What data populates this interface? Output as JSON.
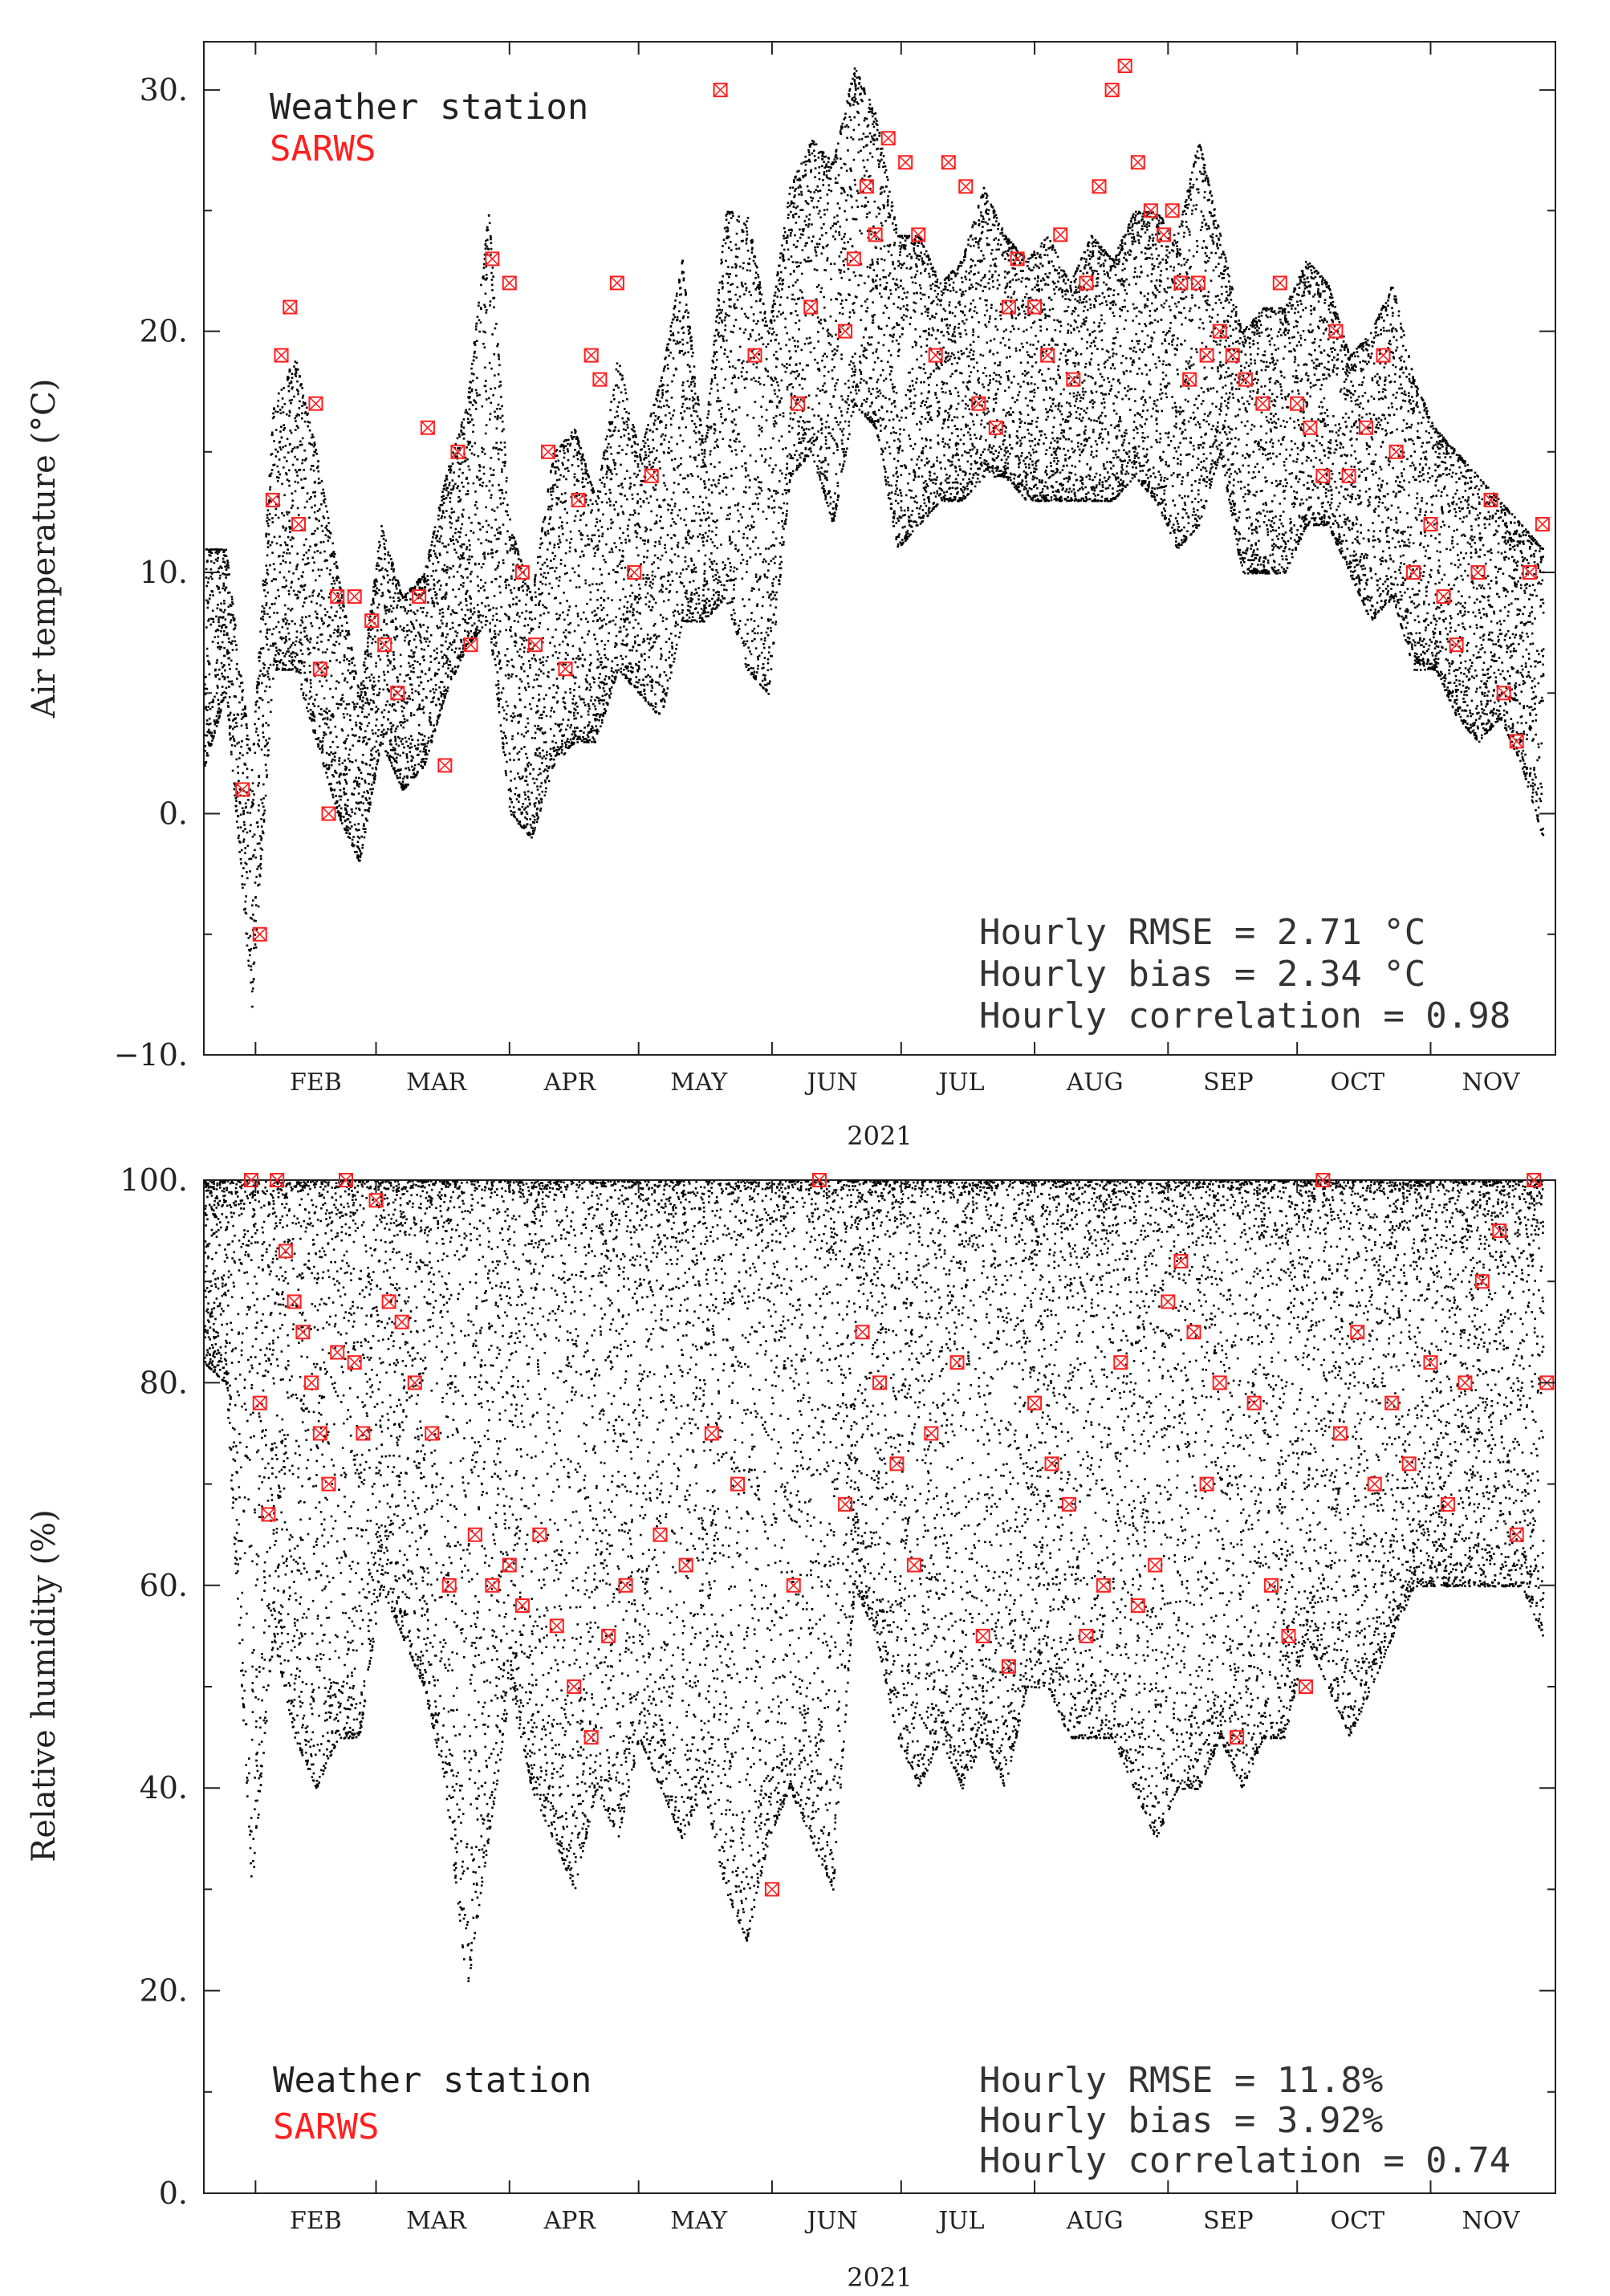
{
  "colors": {
    "station": "#000000",
    "sarws": "#ff2020",
    "axis": "#222222"
  },
  "chart_data": [
    {
      "type": "scatter",
      "ylabel": "Air temperature (°C)",
      "xlabel": "2021",
      "ylim": [
        -10,
        32
      ],
      "yticks": [
        -10,
        0,
        10,
        20,
        30
      ],
      "ytick_labels": [
        "−10.",
        "0.",
        "10.",
        "20.",
        "30."
      ],
      "xlim": [
        "2021-01-20",
        "2021-11-30"
      ],
      "month_labels": [
        "FEB",
        "MAR",
        "APR",
        "MAY",
        "JUN",
        "JUL",
        "AUG",
        "SEP",
        "OCT",
        "NOV"
      ],
      "legend": {
        "placement": "top-left",
        "entries": [
          "Weather station",
          "SARWS"
        ]
      },
      "stats": [
        "Hourly RMSE = 2.71 °C",
        "Hourly bias = 2.34 °C",
        "Hourly correlation = 0.98"
      ],
      "series": [
        {
          "name": "Weather station",
          "marker": "dot",
          "x": [
            "2021-01-20",
            "2021-01-25",
            "2021-01-31",
            "2021-02-05",
            "2021-02-10",
            "2021-02-15",
            "2021-02-20",
            "2021-02-25",
            "2021-03-02",
            "2021-03-07",
            "2021-03-12",
            "2021-03-17",
            "2021-03-22",
            "2021-03-27",
            "2021-04-01",
            "2021-04-06",
            "2021-04-11",
            "2021-04-16",
            "2021-04-21",
            "2021-04-26",
            "2021-05-01",
            "2021-05-06",
            "2021-05-11",
            "2021-05-16",
            "2021-05-21",
            "2021-05-26",
            "2021-05-31",
            "2021-06-05",
            "2021-06-10",
            "2021-06-15",
            "2021-06-20",
            "2021-06-25",
            "2021-06-30",
            "2021-07-05",
            "2021-07-10",
            "2021-07-15",
            "2021-07-20",
            "2021-07-25",
            "2021-07-30",
            "2021-08-04",
            "2021-08-09",
            "2021-08-14",
            "2021-08-19",
            "2021-08-24",
            "2021-08-29",
            "2021-09-03",
            "2021-09-08",
            "2021-09-13",
            "2021-09-18",
            "2021-09-23",
            "2021-09-28",
            "2021-10-03",
            "2021-10-08",
            "2021-10-13",
            "2021-10-18",
            "2021-10-23",
            "2021-10-28",
            "2021-11-02",
            "2021-11-07",
            "2021-11-12",
            "2021-11-17",
            "2021-11-22",
            "2021-11-27"
          ],
          "y": [
            8,
            9,
            -6,
            10,
            14,
            8,
            4,
            0,
            7,
            5,
            6,
            9,
            14,
            20,
            5,
            2,
            8,
            10,
            7,
            12,
            10,
            9,
            11,
            12,
            16,
            12,
            10,
            20,
            22,
            18,
            24,
            25,
            17,
            15,
            16,
            17,
            18,
            20,
            17,
            17,
            16,
            17,
            18,
            17,
            16,
            17,
            18,
            22,
            15,
            16,
            16,
            19,
            16,
            14,
            15,
            14,
            12,
            12,
            10,
            10,
            10,
            9,
            5
          ],
          "y_low": [
            2,
            5,
            -8,
            6,
            6,
            3,
            0,
            -2,
            3,
            1,
            2,
            5,
            7,
            8,
            0,
            -1,
            2,
            3,
            3,
            6,
            5,
            4,
            8,
            8,
            9,
            6,
            5,
            14,
            15,
            12,
            17,
            16,
            11,
            12,
            13,
            13,
            14,
            14,
            13,
            13,
            13,
            13,
            13,
            14,
            13,
            11,
            12,
            15,
            10,
            10,
            10,
            12,
            12,
            10,
            8,
            9,
            6,
            6,
            4,
            3,
            4,
            2,
            -1
          ],
          "y_high": [
            11,
            11,
            2,
            17,
            19,
            15,
            10,
            5,
            12,
            9,
            10,
            14,
            17,
            25,
            12,
            9,
            15,
            16,
            13,
            19,
            15,
            18,
            23,
            15,
            25,
            25,
            20,
            26,
            28,
            27,
            31,
            29,
            24,
            24,
            22,
            23,
            26,
            24,
            23,
            24,
            22,
            24,
            23,
            25,
            25,
            24,
            28,
            24,
            20,
            21,
            21,
            23,
            22,
            19,
            20,
            22,
            18,
            16,
            15,
            14,
            13,
            12,
            11
          ]
        },
        {
          "name": "SARWS",
          "marker": "boxed-x",
          "x": [
            "2021-01-29",
            "2021-02-02",
            "2021-02-05",
            "2021-02-07",
            "2021-02-09",
            "2021-02-11",
            "2021-02-15",
            "2021-02-16",
            "2021-02-18",
            "2021-02-20",
            "2021-02-24",
            "2021-02-28",
            "2021-03-03",
            "2021-03-06",
            "2021-03-11",
            "2021-03-13",
            "2021-03-17",
            "2021-03-20",
            "2021-03-23",
            "2021-03-28",
            "2021-04-01",
            "2021-04-04",
            "2021-04-07",
            "2021-04-10",
            "2021-04-14",
            "2021-04-17",
            "2021-04-20",
            "2021-04-22",
            "2021-04-26",
            "2021-04-30",
            "2021-05-04",
            "2021-05-20",
            "2021-05-28",
            "2021-06-07",
            "2021-06-10",
            "2021-06-18",
            "2021-06-20",
            "2021-06-23",
            "2021-06-25",
            "2021-06-28",
            "2021-07-02",
            "2021-07-05",
            "2021-07-09",
            "2021-07-12",
            "2021-07-16",
            "2021-07-19",
            "2021-07-23",
            "2021-07-26",
            "2021-07-28",
            "2021-08-01",
            "2021-08-04",
            "2021-08-07",
            "2021-08-10",
            "2021-08-13",
            "2021-08-16",
            "2021-08-19",
            "2021-08-22",
            "2021-08-25",
            "2021-08-28",
            "2021-08-31",
            "2021-09-02",
            "2021-09-04",
            "2021-09-06",
            "2021-09-08",
            "2021-09-10",
            "2021-09-13",
            "2021-09-16",
            "2021-09-19",
            "2021-09-23",
            "2021-09-27",
            "2021-10-01",
            "2021-10-04",
            "2021-10-07",
            "2021-10-10",
            "2021-10-13",
            "2021-10-17",
            "2021-10-21",
            "2021-10-24",
            "2021-10-28",
            "2021-11-01",
            "2021-11-04",
            "2021-11-07",
            "2021-11-12",
            "2021-11-15",
            "2021-11-18",
            "2021-11-21",
            "2021-11-24",
            "2021-11-27"
          ],
          "y": [
            1,
            -5,
            13,
            19,
            21,
            12,
            17,
            6,
            0,
            9,
            9,
            8,
            7,
            5,
            9,
            16,
            2,
            15,
            7,
            23,
            22,
            10,
            7,
            15,
            6,
            13,
            19,
            18,
            22,
            10,
            14,
            30,
            19,
            17,
            21,
            20,
            23,
            26,
            24,
            28,
            27,
            24,
            19,
            27,
            26,
            17,
            16,
            21,
            23,
            21,
            19,
            24,
            18,
            22,
            26,
            30,
            31,
            27,
            25,
            24,
            25,
            22,
            18,
            22,
            19,
            20,
            19,
            18,
            17,
            22,
            17,
            16,
            14,
            20,
            14,
            16,
            19,
            15,
            10,
            12,
            9,
            7,
            10,
            13,
            5,
            3,
            10,
            12
          ]
        }
      ]
    },
    {
      "type": "scatter",
      "ylabel": "Relative humidity (%)",
      "xlabel": "2021",
      "ylim": [
        0,
        100
      ],
      "yticks": [
        0,
        20,
        40,
        60,
        80,
        100
      ],
      "ytick_labels": [
        "0.",
        "20.",
        "40.",
        "60.",
        "80.",
        "100."
      ],
      "xlim": [
        "2021-01-20",
        "2021-11-30"
      ],
      "month_labels": [
        "FEB",
        "MAR",
        "APR",
        "MAY",
        "JUN",
        "JUL",
        "AUG",
        "SEP",
        "OCT",
        "NOV"
      ],
      "legend": {
        "placement": "bottom-left",
        "entries": [
          "Weather station",
          "SARWS"
        ]
      },
      "stats": [
        "Hourly RMSE = 11.8%",
        "Hourly bias = 3.92%",
        "Hourly correlation = 0.74"
      ],
      "series": [
        {
          "name": "Weather station",
          "marker": "dot",
          "x": [
            "2021-01-20",
            "2021-01-25",
            "2021-01-31",
            "2021-02-05",
            "2021-02-10",
            "2021-02-15",
            "2021-02-20",
            "2021-02-25",
            "2021-03-02",
            "2021-03-07",
            "2021-03-12",
            "2021-03-17",
            "2021-03-22",
            "2021-03-27",
            "2021-04-01",
            "2021-04-06",
            "2021-04-11",
            "2021-04-16",
            "2021-04-21",
            "2021-04-26",
            "2021-05-01",
            "2021-05-06",
            "2021-05-11",
            "2021-05-16",
            "2021-05-21",
            "2021-05-26",
            "2021-05-31",
            "2021-06-05",
            "2021-06-10",
            "2021-06-15",
            "2021-06-20",
            "2021-06-25",
            "2021-06-30",
            "2021-07-05",
            "2021-07-10",
            "2021-07-15",
            "2021-07-20",
            "2021-07-25",
            "2021-07-30",
            "2021-08-04",
            "2021-08-09",
            "2021-08-14",
            "2021-08-19",
            "2021-08-24",
            "2021-08-29",
            "2021-09-03",
            "2021-09-08",
            "2021-09-13",
            "2021-09-18",
            "2021-09-23",
            "2021-09-28",
            "2021-10-03",
            "2021-10-08",
            "2021-10-13",
            "2021-10-18",
            "2021-10-23",
            "2021-10-28",
            "2021-11-02",
            "2021-11-07",
            "2021-11-12",
            "2021-11-17",
            "2021-11-22",
            "2021-11-27"
          ],
          "y_low": [
            82,
            80,
            30,
            55,
            45,
            40,
            45,
            45,
            60,
            55,
            50,
            40,
            20,
            35,
            50,
            40,
            35,
            30,
            40,
            35,
            45,
            40,
            35,
            40,
            30,
            25,
            35,
            40,
            35,
            30,
            60,
            55,
            45,
            40,
            45,
            40,
            45,
            40,
            50,
            50,
            45,
            45,
            45,
            40,
            35,
            40,
            40,
            45,
            40,
            45,
            45,
            55,
            50,
            45,
            50,
            55,
            60,
            60,
            60,
            60,
            60,
            60,
            55
          ],
          "y_high": [
            100,
            100,
            100,
            100,
            100,
            100,
            100,
            100,
            100,
            100,
            100,
            100,
            100,
            100,
            100,
            100,
            100,
            100,
            100,
            100,
            100,
            100,
            100,
            100,
            100,
            100,
            100,
            100,
            100,
            100,
            100,
            100,
            100,
            100,
            100,
            100,
            100,
            100,
            100,
            100,
            100,
            100,
            100,
            100,
            100,
            100,
            100,
            100,
            100,
            100,
            100,
            100,
            100,
            100,
            100,
            100,
            100,
            100,
            100,
            100,
            100,
            100,
            100
          ]
        },
        {
          "name": "SARWS",
          "marker": "boxed-x",
          "x": [
            "2021-01-31",
            "2021-02-02",
            "2021-02-04",
            "2021-02-06",
            "2021-02-08",
            "2021-02-10",
            "2021-02-12",
            "2021-02-14",
            "2021-02-16",
            "2021-02-18",
            "2021-02-20",
            "2021-02-22",
            "2021-02-24",
            "2021-02-26",
            "2021-03-01",
            "2021-03-04",
            "2021-03-07",
            "2021-03-10",
            "2021-03-14",
            "2021-03-18",
            "2021-03-24",
            "2021-03-28",
            "2021-04-01",
            "2021-04-04",
            "2021-04-08",
            "2021-04-12",
            "2021-04-16",
            "2021-04-20",
            "2021-04-24",
            "2021-04-28",
            "2021-05-06",
            "2021-05-12",
            "2021-05-18",
            "2021-05-24",
            "2021-06-01",
            "2021-06-06",
            "2021-06-12",
            "2021-06-18",
            "2021-06-22",
            "2021-06-26",
            "2021-06-30",
            "2021-07-04",
            "2021-07-08",
            "2021-07-14",
            "2021-07-20",
            "2021-07-26",
            "2021-08-01",
            "2021-08-05",
            "2021-08-09",
            "2021-08-13",
            "2021-08-17",
            "2021-08-21",
            "2021-08-25",
            "2021-08-29",
            "2021-09-01",
            "2021-09-04",
            "2021-09-07",
            "2021-09-10",
            "2021-09-13",
            "2021-09-17",
            "2021-09-21",
            "2021-09-25",
            "2021-09-29",
            "2021-10-03",
            "2021-10-07",
            "2021-10-11",
            "2021-10-15",
            "2021-10-19",
            "2021-10-23",
            "2021-10-27",
            "2021-11-01",
            "2021-11-05",
            "2021-11-09",
            "2021-11-13",
            "2021-11-17",
            "2021-11-21",
            "2021-11-25",
            "2021-11-28"
          ],
          "y": [
            100,
            78,
            67,
            100,
            93,
            88,
            85,
            80,
            75,
            70,
            83,
            100,
            82,
            75,
            98,
            88,
            86,
            80,
            75,
            60,
            65,
            60,
            62,
            58,
            65,
            56,
            50,
            45,
            55,
            60,
            65,
            62,
            75,
            70,
            30,
            60,
            100,
            68,
            85,
            80,
            72,
            62,
            75,
            82,
            55,
            52,
            78,
            72,
            68,
            55,
            60,
            82,
            58,
            62,
            88,
            92,
            85,
            70,
            80,
            45,
            78,
            60,
            55,
            50,
            100,
            75,
            85,
            70,
            78,
            72,
            82,
            68,
            80,
            90,
            95,
            65,
            100,
            80
          ]
        }
      ]
    }
  ]
}
